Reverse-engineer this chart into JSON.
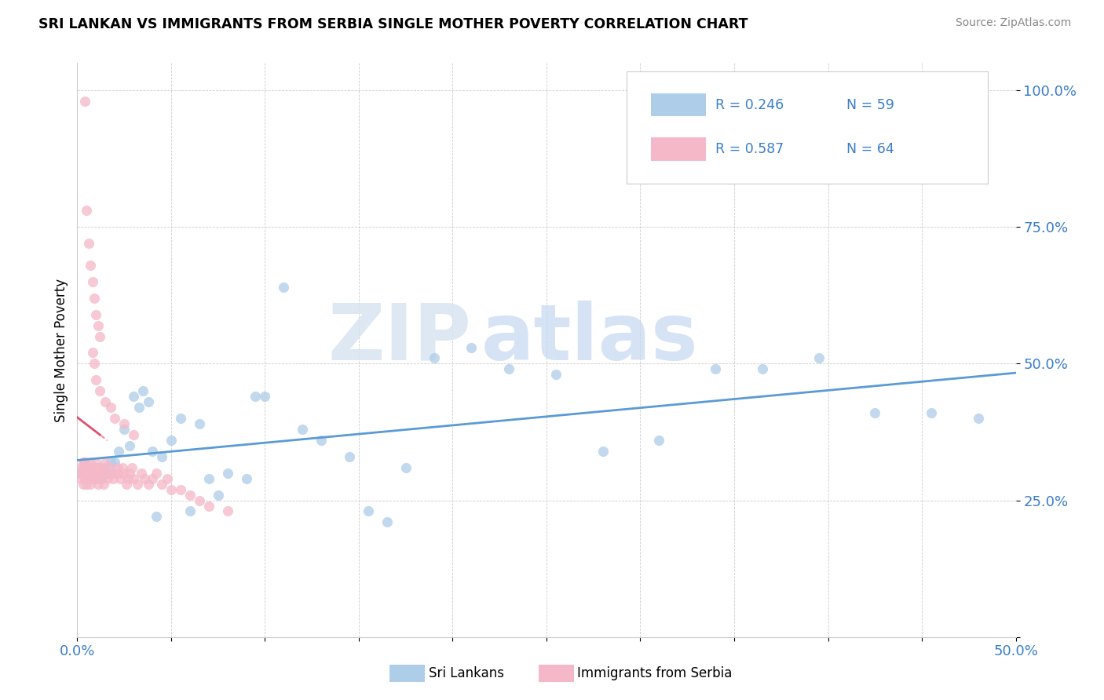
{
  "title": "SRI LANKAN VS IMMIGRANTS FROM SERBIA SINGLE MOTHER POVERTY CORRELATION CHART",
  "source": "Source: ZipAtlas.com",
  "ylabel": "Single Mother Poverty",
  "xlim": [
    0.0,
    0.5
  ],
  "ylim": [
    0.0,
    1.05
  ],
  "xtick_positions": [
    0.0,
    0.05,
    0.1,
    0.15,
    0.2,
    0.25,
    0.3,
    0.35,
    0.4,
    0.45,
    0.5
  ],
  "xticklabels": [
    "0.0%",
    "",
    "",
    "",
    "",
    "",
    "",
    "",
    "",
    "",
    "50.0%"
  ],
  "ytick_positions": [
    0.0,
    0.25,
    0.5,
    0.75,
    1.0
  ],
  "yticklabels": [
    "",
    "25.0%",
    "50.0%",
    "75.0%",
    "100.0%"
  ],
  "sri_lanka_color": "#aecde8",
  "serbia_color": "#f5b8c8",
  "sri_lanka_line_color": "#5b9bd5",
  "serbia_line_color": "#e05070",
  "sri_lanka_R": 0.246,
  "sri_lanka_N": 59,
  "serbia_R": 0.587,
  "serbia_N": 64,
  "legend_label_1": "Sri Lankans",
  "legend_label_2": "Immigrants from Serbia",
  "watermark_zip": "ZIP",
  "watermark_atlas": "atlas",
  "sri_lanka_x": [
    0.002,
    0.003,
    0.004,
    0.004,
    0.005,
    0.005,
    0.006,
    0.007,
    0.008,
    0.008,
    0.009,
    0.01,
    0.011,
    0.012,
    0.013,
    0.014,
    0.015,
    0.016,
    0.018,
    0.02,
    0.022,
    0.025,
    0.028,
    0.03,
    0.033,
    0.035,
    0.038,
    0.04,
    0.042,
    0.045,
    0.05,
    0.055,
    0.06,
    0.065,
    0.07,
    0.075,
    0.08,
    0.09,
    0.095,
    0.1,
    0.11,
    0.12,
    0.13,
    0.145,
    0.155,
    0.165,
    0.175,
    0.19,
    0.21,
    0.23,
    0.255,
    0.28,
    0.31,
    0.34,
    0.365,
    0.395,
    0.425,
    0.455,
    0.48
  ],
  "sri_lanka_y": [
    0.3,
    0.31,
    0.3,
    0.32,
    0.29,
    0.31,
    0.3,
    0.3,
    0.31,
    0.3,
    0.29,
    0.3,
    0.31,
    0.3,
    0.29,
    0.3,
    0.31,
    0.3,
    0.32,
    0.32,
    0.34,
    0.38,
    0.35,
    0.44,
    0.42,
    0.45,
    0.43,
    0.34,
    0.22,
    0.33,
    0.36,
    0.4,
    0.23,
    0.39,
    0.29,
    0.26,
    0.3,
    0.29,
    0.44,
    0.44,
    0.64,
    0.38,
    0.36,
    0.33,
    0.23,
    0.21,
    0.31,
    0.51,
    0.53,
    0.49,
    0.48,
    0.34,
    0.36,
    0.49,
    0.49,
    0.51,
    0.41,
    0.41,
    0.4
  ],
  "serbia_x": [
    0.001,
    0.002,
    0.002,
    0.003,
    0.003,
    0.003,
    0.004,
    0.004,
    0.004,
    0.005,
    0.005,
    0.005,
    0.006,
    0.006,
    0.006,
    0.007,
    0.007,
    0.007,
    0.008,
    0.008,
    0.009,
    0.009,
    0.01,
    0.01,
    0.01,
    0.011,
    0.011,
    0.012,
    0.012,
    0.013,
    0.013,
    0.014,
    0.014,
    0.015,
    0.015,
    0.016,
    0.017,
    0.018,
    0.019,
    0.02,
    0.021,
    0.022,
    0.023,
    0.024,
    0.025,
    0.026,
    0.027,
    0.028,
    0.029,
    0.03,
    0.032,
    0.034,
    0.036,
    0.038,
    0.04,
    0.042,
    0.045,
    0.048,
    0.05,
    0.055,
    0.06,
    0.065,
    0.07,
    0.08
  ],
  "serbia_y": [
    0.3,
    0.31,
    0.29,
    0.3,
    0.32,
    0.28,
    0.3,
    0.32,
    0.29,
    0.31,
    0.3,
    0.28,
    0.31,
    0.29,
    0.3,
    0.32,
    0.3,
    0.28,
    0.3,
    0.29,
    0.31,
    0.3,
    0.32,
    0.29,
    0.31,
    0.3,
    0.28,
    0.31,
    0.3,
    0.29,
    0.31,
    0.3,
    0.28,
    0.32,
    0.3,
    0.29,
    0.31,
    0.3,
    0.29,
    0.3,
    0.31,
    0.3,
    0.29,
    0.31,
    0.3,
    0.28,
    0.29,
    0.3,
    0.31,
    0.29,
    0.28,
    0.3,
    0.29,
    0.28,
    0.29,
    0.3,
    0.28,
    0.29,
    0.27,
    0.27,
    0.26,
    0.25,
    0.24,
    0.23
  ],
  "serbia_high_x": [
    0.004,
    0.005,
    0.006,
    0.007,
    0.008,
    0.009,
    0.01,
    0.011,
    0.012
  ],
  "serbia_high_y": [
    0.98,
    0.78,
    0.72,
    0.68,
    0.65,
    0.62,
    0.59,
    0.57,
    0.55
  ],
  "serbia_mid_x": [
    0.008,
    0.009,
    0.01,
    0.012,
    0.015,
    0.018,
    0.02,
    0.025,
    0.03
  ],
  "serbia_mid_y": [
    0.52,
    0.5,
    0.47,
    0.45,
    0.43,
    0.42,
    0.4,
    0.39,
    0.37
  ]
}
